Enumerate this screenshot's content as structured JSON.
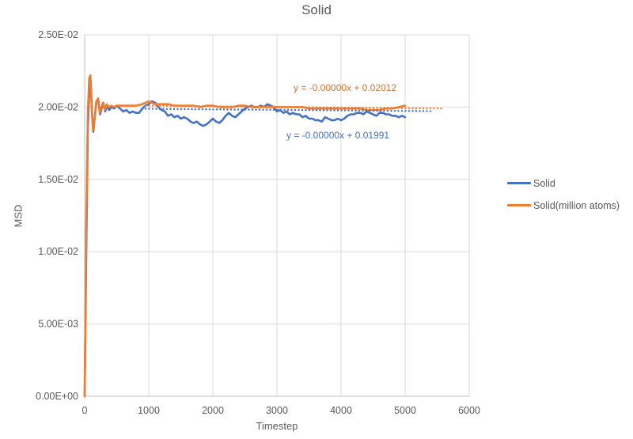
{
  "chart": {
    "title": "Solid",
    "ylabel": "MSD",
    "xlabel": "Timestep",
    "equations": {
      "orange": {
        "text": "y = -0.00000x + 0.02012",
        "color": "#D9702E"
      },
      "blue": {
        "text": "y = -0.00000x + 0.01991",
        "color": "#4472C4"
      }
    },
    "legend": {
      "position": "right",
      "items": [
        {
          "label": "Solid",
          "color": "#4472C4"
        },
        {
          "label": "Solid(million atoms)",
          "color": "#ED7D31"
        }
      ]
    },
    "colors": {
      "grid": "#D9D9D9",
      "axis": "#BFBFBF",
      "text": "#595959"
    }
  },
  "chart_data": {
    "type": "line",
    "title": "Solid",
    "xlabel": "Timestep",
    "ylabel": "MSD",
    "xlim": [
      0,
      6000
    ],
    "ylim": [
      0,
      0.025
    ],
    "grid": true,
    "legend_position": "right",
    "xticks": [
      {
        "v": 0,
        "label": "0"
      },
      {
        "v": 1000,
        "label": "1000"
      },
      {
        "v": 2000,
        "label": "2000"
      },
      {
        "v": 3000,
        "label": "3000"
      },
      {
        "v": 4000,
        "label": "4000"
      },
      {
        "v": 5000,
        "label": "5000"
      },
      {
        "v": 6000,
        "label": "6000"
      }
    ],
    "yticks": [
      {
        "v": 0,
        "label": "0.00E+00"
      },
      {
        "v": 0.005,
        "label": "5.00E-03"
      },
      {
        "v": 0.01,
        "label": "1.00E-02"
      },
      {
        "v": 0.015,
        "label": "1.50E-02"
      },
      {
        "v": 0.02,
        "label": "2.00E-02"
      },
      {
        "v": 0.025,
        "label": "2.50E-02"
      }
    ],
    "series": [
      {
        "name": "Solid",
        "color": "#4472C4",
        "points": [
          [
            0,
            0
          ],
          [
            25,
            0.01
          ],
          [
            50,
            0.0185
          ],
          [
            75,
            0.0215
          ],
          [
            95,
            0.0218
          ],
          [
            115,
            0.0195
          ],
          [
            135,
            0.0183
          ],
          [
            160,
            0.0194
          ],
          [
            185,
            0.0204
          ],
          [
            215,
            0.0205
          ],
          [
            240,
            0.0195
          ],
          [
            265,
            0.0199
          ],
          [
            290,
            0.0203
          ],
          [
            320,
            0.0197
          ],
          [
            350,
            0.0201
          ],
          [
            380,
            0.0198
          ],
          [
            420,
            0.02
          ],
          [
            460,
            0.0199
          ],
          [
            500,
            0.0201
          ],
          [
            550,
            0.0199
          ],
          [
            600,
            0.0197
          ],
          [
            650,
            0.0198
          ],
          [
            700,
            0.0196
          ],
          [
            750,
            0.0197
          ],
          [
            800,
            0.0196
          ],
          [
            850,
            0.0196
          ],
          [
            900,
            0.0199
          ],
          [
            950,
            0.0201
          ],
          [
            1000,
            0.0202
          ],
          [
            1050,
            0.0204
          ],
          [
            1100,
            0.0203
          ],
          [
            1150,
            0.02
          ],
          [
            1200,
            0.0198
          ],
          [
            1250,
            0.0197
          ],
          [
            1300,
            0.0194
          ],
          [
            1350,
            0.0195
          ],
          [
            1400,
            0.0193
          ],
          [
            1450,
            0.0194
          ],
          [
            1500,
            0.0192
          ],
          [
            1550,
            0.0193
          ],
          [
            1600,
            0.0192
          ],
          [
            1650,
            0.019
          ],
          [
            1700,
            0.0189
          ],
          [
            1750,
            0.019
          ],
          [
            1800,
            0.0188
          ],
          [
            1850,
            0.0187
          ],
          [
            1900,
            0.0188
          ],
          [
            1950,
            0.019
          ],
          [
            2000,
            0.0192
          ],
          [
            2050,
            0.019
          ],
          [
            2100,
            0.0189
          ],
          [
            2150,
            0.0191
          ],
          [
            2200,
            0.0194
          ],
          [
            2250,
            0.0196
          ],
          [
            2300,
            0.0194
          ],
          [
            2350,
            0.0193
          ],
          [
            2400,
            0.0195
          ],
          [
            2450,
            0.0197
          ],
          [
            2500,
            0.0199
          ],
          [
            2550,
            0.02
          ],
          [
            2600,
            0.0201
          ],
          [
            2650,
            0.02
          ],
          [
            2700,
            0.02
          ],
          [
            2750,
            0.0201
          ],
          [
            2800,
            0.02
          ],
          [
            2850,
            0.0202
          ],
          [
            2900,
            0.0201
          ],
          [
            2950,
            0.02
          ],
          [
            3000,
            0.0197
          ],
          [
            3050,
            0.0198
          ],
          [
            3100,
            0.0196
          ],
          [
            3150,
            0.0197
          ],
          [
            3200,
            0.0195
          ],
          [
            3250,
            0.0196
          ],
          [
            3300,
            0.0195
          ],
          [
            3350,
            0.0195
          ],
          [
            3400,
            0.0193
          ],
          [
            3450,
            0.0194
          ],
          [
            3500,
            0.0192
          ],
          [
            3550,
            0.0192
          ],
          [
            3600,
            0.0191
          ],
          [
            3650,
            0.0191
          ],
          [
            3700,
            0.019
          ],
          [
            3750,
            0.0193
          ],
          [
            3800,
            0.0192
          ],
          [
            3850,
            0.0191
          ],
          [
            3900,
            0.0191
          ],
          [
            3950,
            0.0192
          ],
          [
            4000,
            0.0191
          ],
          [
            4050,
            0.0192
          ],
          [
            4100,
            0.0194
          ],
          [
            4150,
            0.0195
          ],
          [
            4200,
            0.0195
          ],
          [
            4250,
            0.0196
          ],
          [
            4300,
            0.0196
          ],
          [
            4350,
            0.0195
          ],
          [
            4400,
            0.0197
          ],
          [
            4450,
            0.0196
          ],
          [
            4500,
            0.0195
          ],
          [
            4550,
            0.0194
          ],
          [
            4600,
            0.0196
          ],
          [
            4650,
            0.0196
          ],
          [
            4700,
            0.0195
          ],
          [
            4750,
            0.0195
          ],
          [
            4800,
            0.0194
          ],
          [
            4850,
            0.0194
          ],
          [
            4900,
            0.0193
          ],
          [
            4950,
            0.0194
          ],
          [
            5000,
            0.0193
          ]
        ]
      },
      {
        "name": "Solid(million atoms)",
        "color": "#ED7D31",
        "points": [
          [
            0,
            0
          ],
          [
            25,
            0.012
          ],
          [
            50,
            0.0195
          ],
          [
            70,
            0.022
          ],
          [
            90,
            0.0222
          ],
          [
            110,
            0.02
          ],
          [
            130,
            0.0184
          ],
          [
            155,
            0.0192
          ],
          [
            180,
            0.0204
          ],
          [
            210,
            0.0206
          ],
          [
            235,
            0.0196
          ],
          [
            260,
            0.02
          ],
          [
            285,
            0.0203
          ],
          [
            315,
            0.0198
          ],
          [
            345,
            0.0202
          ],
          [
            375,
            0.02
          ],
          [
            415,
            0.0201
          ],
          [
            455,
            0.02
          ],
          [
            500,
            0.0201
          ],
          [
            600,
            0.0201
          ],
          [
            700,
            0.0201
          ],
          [
            800,
            0.0201
          ],
          [
            900,
            0.0202
          ],
          [
            950,
            0.0203
          ],
          [
            1000,
            0.0204
          ],
          [
            1050,
            0.0203
          ],
          [
            1100,
            0.0202
          ],
          [
            1200,
            0.0202
          ],
          [
            1300,
            0.0202
          ],
          [
            1400,
            0.0201
          ],
          [
            1500,
            0.0201
          ],
          [
            1600,
            0.0201
          ],
          [
            1700,
            0.0201
          ],
          [
            1800,
            0.02
          ],
          [
            1900,
            0.0201
          ],
          [
            2000,
            0.0201
          ],
          [
            2100,
            0.02
          ],
          [
            2200,
            0.02
          ],
          [
            2300,
            0.02
          ],
          [
            2400,
            0.0201
          ],
          [
            2500,
            0.0201
          ],
          [
            2600,
            0.02
          ],
          [
            2700,
            0.02
          ],
          [
            2800,
            0.02
          ],
          [
            2900,
            0.02
          ],
          [
            3000,
            0.02
          ],
          [
            3100,
            0.02
          ],
          [
            3200,
            0.02
          ],
          [
            3300,
            0.02
          ],
          [
            3400,
            0.02
          ],
          [
            3500,
            0.0199
          ],
          [
            3600,
            0.0199
          ],
          [
            3700,
            0.0199
          ],
          [
            3800,
            0.0199
          ],
          [
            3900,
            0.0199
          ],
          [
            4000,
            0.0199
          ],
          [
            4100,
            0.0199
          ],
          [
            4200,
            0.0199
          ],
          [
            4300,
            0.0199
          ],
          [
            4400,
            0.0198
          ],
          [
            4500,
            0.0198
          ],
          [
            4600,
            0.0198
          ],
          [
            4700,
            0.0199
          ],
          [
            4800,
            0.0199
          ],
          [
            4900,
            0.02
          ],
          [
            5000,
            0.0201
          ]
        ]
      }
    ],
    "trendlines": [
      {
        "series": "Solid(million atoms)",
        "color": "#ED7D31",
        "style": "dotted",
        "equation": "y = -0.00000x + 0.02012",
        "t": [
          950,
          5600
        ],
        "v": [
          0.0201,
          0.0199
        ]
      },
      {
        "series": "Solid",
        "color": "#4472C4",
        "style": "dotted",
        "equation": "y = -0.00000x + 0.01991",
        "t": [
          950,
          5400
        ],
        "v": [
          0.01988,
          0.01972
        ]
      }
    ]
  }
}
